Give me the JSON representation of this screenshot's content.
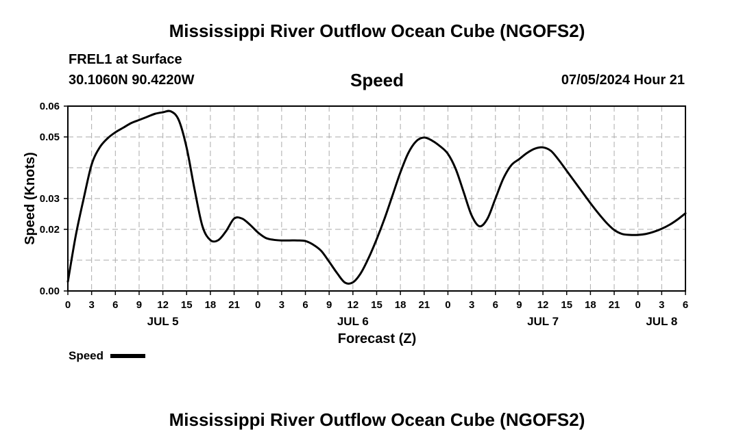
{
  "header": {
    "title": "Mississippi River Outflow Ocean Cube (NGOFS2)",
    "station": "FREL1 at Surface",
    "coords": "30.1060N  90.4220W",
    "variable": "Speed",
    "datetime": "07/05/2024 Hour 21"
  },
  "footer": {
    "title": "Mississippi River Outflow Ocean Cube (NGOFS2)"
  },
  "chart_data": {
    "type": "line",
    "title": "Speed",
    "xlabel": "Forecast (Z)",
    "ylabel": "Speed (Knots)",
    "x_unit": "hours since JUL 5 00Z",
    "xlim": [
      0,
      78
    ],
    "ylim": [
      0,
      0.06
    ],
    "grid": true,
    "legend": {
      "placement": "bottom-left",
      "label": "Speed"
    },
    "x_tick_values": [
      0,
      3,
      6,
      9,
      12,
      15,
      18,
      21,
      24,
      27,
      30,
      33,
      36,
      39,
      42,
      45,
      48,
      51,
      54,
      57,
      60,
      63,
      66,
      69,
      72,
      75,
      78
    ],
    "x_tick_labels": [
      "0",
      "3",
      "6",
      "9",
      "12",
      "15",
      "18",
      "21",
      "0",
      "3",
      "6",
      "9",
      "12",
      "15",
      "18",
      "21",
      "0",
      "3",
      "6",
      "9",
      "12",
      "15",
      "18",
      "21",
      "0",
      "3",
      "6"
    ],
    "day_labels": [
      {
        "label": "JUL 5",
        "x": 12
      },
      {
        "label": "JUL 6",
        "x": 36
      },
      {
        "label": "JUL 7",
        "x": 60
      },
      {
        "label": "JUL 8",
        "x": 75
      }
    ],
    "y_tick_values": [
      0,
      0.02,
      0.03,
      0.05,
      0.06
    ],
    "y_tick_labels": [
      "0.00",
      "0.02",
      "0.03",
      "0.05",
      "0.06"
    ],
    "y_grid_values": [
      0.01,
      0.02,
      0.03,
      0.04,
      0.05,
      0.06
    ],
    "series": [
      {
        "name": "Speed",
        "x": [
          0,
          1,
          2,
          3,
          4,
          5,
          6,
          7,
          8,
          9,
          10,
          11,
          12,
          13,
          14,
          15,
          16,
          17,
          18,
          19,
          20,
          21,
          22,
          23,
          24,
          25,
          26,
          27,
          28,
          29,
          30,
          31,
          32,
          33,
          34,
          35,
          36,
          37,
          38,
          39,
          40,
          41,
          42,
          43,
          44,
          45,
          46,
          47,
          48,
          49,
          50,
          51,
          52,
          53,
          54,
          55,
          56,
          57,
          58,
          59,
          60,
          61,
          62,
          63,
          64,
          65,
          66,
          67,
          68,
          69,
          70,
          71,
          72,
          73,
          74,
          75,
          76,
          77,
          78
        ],
        "values": [
          0.003,
          0.018,
          0.03,
          0.041,
          0.0465,
          0.0495,
          0.0515,
          0.053,
          0.0545,
          0.0555,
          0.0565,
          0.0575,
          0.058,
          0.0583,
          0.0555,
          0.0465,
          0.033,
          0.021,
          0.0165,
          0.0165,
          0.0195,
          0.0235,
          0.0235,
          0.0215,
          0.019,
          0.0172,
          0.0166,
          0.0164,
          0.0164,
          0.0164,
          0.0162,
          0.015,
          0.013,
          0.0095,
          0.0058,
          0.0027,
          0.0028,
          0.0058,
          0.0108,
          0.0168,
          0.0235,
          0.031,
          0.0385,
          0.0448,
          0.0486,
          0.0498,
          0.0488,
          0.047,
          0.0445,
          0.0395,
          0.032,
          0.0245,
          0.021,
          0.0235,
          0.03,
          0.0365,
          0.0408,
          0.0428,
          0.0448,
          0.0462,
          0.0466,
          0.0455,
          0.0425,
          0.039,
          0.0355,
          0.032,
          0.0285,
          0.0252,
          0.0222,
          0.0198,
          0.0185,
          0.0182,
          0.0182,
          0.0185,
          0.0192,
          0.0202,
          0.0215,
          0.0232,
          0.0252
        ]
      }
    ]
  }
}
